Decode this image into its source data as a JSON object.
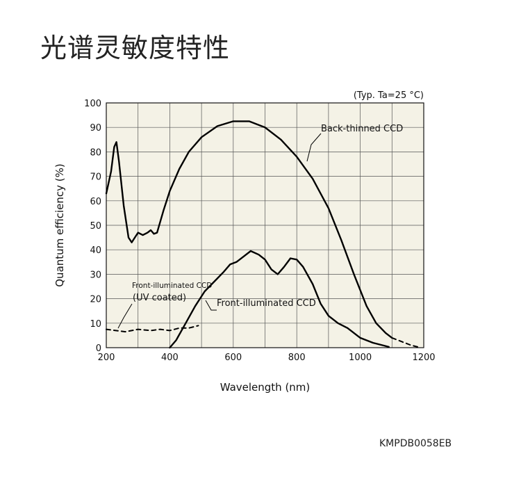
{
  "page": {
    "title": "光谱灵敏度特性",
    "code": "KMPDB0058EB"
  },
  "chart_data": {
    "type": "line",
    "title": "",
    "condition": "(Typ. Ta=25 °C)",
    "xlabel": "Wavelength (nm)",
    "ylabel": "Quantum efficiency (%)",
    "xlim": [
      200,
      1200
    ],
    "ylim": [
      0,
      100
    ],
    "x_ticks": [
      200,
      400,
      600,
      800,
      1000,
      1200
    ],
    "y_ticks": [
      0,
      10,
      20,
      30,
      40,
      50,
      60,
      70,
      80,
      90,
      100
    ],
    "grid": true,
    "series": [
      {
        "name": "Back-thinned CCD",
        "style": "solid",
        "points": [
          [
            200,
            63
          ],
          [
            215,
            72
          ],
          [
            225,
            82
          ],
          [
            232,
            84
          ],
          [
            240,
            76
          ],
          [
            255,
            58
          ],
          [
            270,
            45
          ],
          [
            280,
            43
          ],
          [
            290,
            45
          ],
          [
            300,
            47
          ],
          [
            315,
            46
          ],
          [
            330,
            47
          ],
          [
            340,
            48
          ],
          [
            350,
            46.5
          ],
          [
            360,
            47
          ],
          [
            380,
            56
          ],
          [
            400,
            64
          ],
          [
            430,
            73
          ],
          [
            460,
            80
          ],
          [
            500,
            86
          ],
          [
            550,
            90.5
          ],
          [
            600,
            92.5
          ],
          [
            650,
            92.5
          ],
          [
            700,
            90
          ],
          [
            750,
            85
          ],
          [
            800,
            78
          ],
          [
            850,
            69
          ],
          [
            900,
            57
          ],
          [
            940,
            44
          ],
          [
            980,
            30
          ],
          [
            1020,
            17
          ],
          [
            1050,
            10
          ],
          [
            1080,
            6
          ],
          [
            1100,
            4
          ]
        ]
      },
      {
        "name": "Front-illuminated CCD",
        "style": "solid",
        "points": [
          [
            400,
            0
          ],
          [
            420,
            3
          ],
          [
            450,
            10
          ],
          [
            480,
            17
          ],
          [
            510,
            23
          ],
          [
            540,
            27
          ],
          [
            570,
            31
          ],
          [
            590,
            34
          ],
          [
            610,
            35
          ],
          [
            630,
            37
          ],
          [
            655,
            39.5
          ],
          [
            680,
            38
          ],
          [
            700,
            36
          ],
          [
            720,
            32
          ],
          [
            740,
            30
          ],
          [
            760,
            33
          ],
          [
            780,
            36.5
          ],
          [
            800,
            36
          ],
          [
            820,
            33
          ],
          [
            850,
            26
          ],
          [
            875,
            18
          ],
          [
            900,
            13
          ],
          [
            930,
            10
          ],
          [
            960,
            8
          ],
          [
            1000,
            4
          ],
          [
            1040,
            2
          ],
          [
            1070,
            1
          ],
          [
            1090,
            0.3
          ]
        ]
      },
      {
        "name": "Front-illuminated CCD (UV coated)",
        "style": "dashed",
        "points": [
          [
            200,
            7.5
          ],
          [
            230,
            7
          ],
          [
            260,
            6.5
          ],
          [
            300,
            7.5
          ],
          [
            340,
            7
          ],
          [
            370,
            7.5
          ],
          [
            400,
            7
          ],
          [
            430,
            8
          ],
          [
            460,
            8
          ],
          [
            490,
            9
          ]
        ]
      },
      {
        "name": "Back-thinned CCD (extension)",
        "style": "dashed",
        "points": [
          [
            1100,
            4
          ],
          [
            1130,
            2.5
          ],
          [
            1160,
            1
          ],
          [
            1190,
            0
          ]
        ]
      }
    ],
    "labels": [
      {
        "text": "Back-thinned CCD"
      },
      {
        "text": "Front-illuminated CCD"
      },
      {
        "text": "Front-illuminated CCD"
      },
      {
        "text": "(UV coated)"
      }
    ]
  }
}
